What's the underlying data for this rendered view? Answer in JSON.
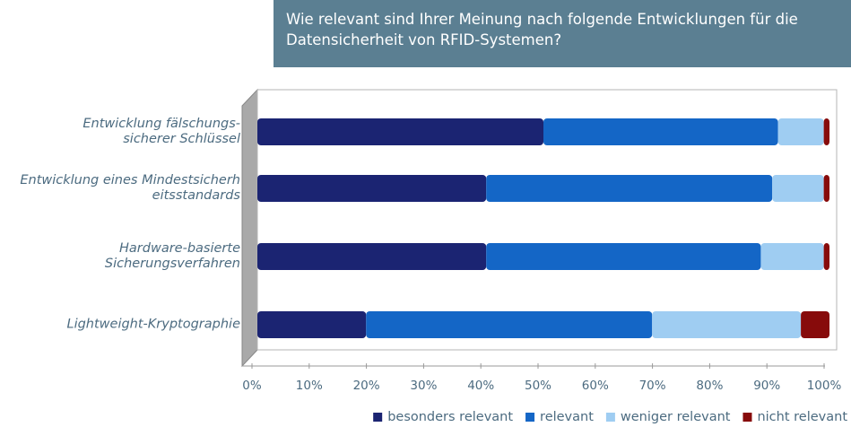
{
  "chart_data": {
    "type": "stacked-bar-horizontal",
    "title": "Wie relevant sind Ihrer Meinung nach folgende Entwicklungen für die Datensicherheit von RFID-Systemen?",
    "categories": [
      "Entwicklung fälschungs-\nsicherer Schlüssel",
      "Entwicklung eines Mindestsicherh\neitsstandards",
      "Hardware-basierte\nSicherungsverfahren",
      "Lightweight-Kryptographie"
    ],
    "series": [
      {
        "name": "besonders relevant",
        "color": "#1b2472",
        "values": [
          50,
          40,
          40,
          19
        ]
      },
      {
        "name": "relevant",
        "color": "#1466c6",
        "values": [
          41,
          50,
          48,
          50
        ]
      },
      {
        "name": "weniger relevant",
        "color": "#9fcdf2",
        "values": [
          8,
          9,
          11,
          26
        ]
      },
      {
        "name": "nicht relevant",
        "color": "#870b0b",
        "values": [
          1,
          1,
          1,
          5
        ]
      }
    ],
    "xlim": [
      0,
      100
    ],
    "xticks": [
      {
        "value": 0,
        "label": "0%"
      },
      {
        "value": 10,
        "label": "10%"
      },
      {
        "value": 20,
        "label": "20%"
      },
      {
        "value": 30,
        "label": "30%"
      },
      {
        "value": 40,
        "label": "40%"
      },
      {
        "value": 50,
        "label": "50%"
      },
      {
        "value": 60,
        "label": "60%"
      },
      {
        "value": 70,
        "label": "70%"
      },
      {
        "value": 80,
        "label": "80%"
      },
      {
        "value": 90,
        "label": "90%"
      },
      {
        "value": 100,
        "label": "100%"
      }
    ],
    "legend": "bottom-right"
  }
}
